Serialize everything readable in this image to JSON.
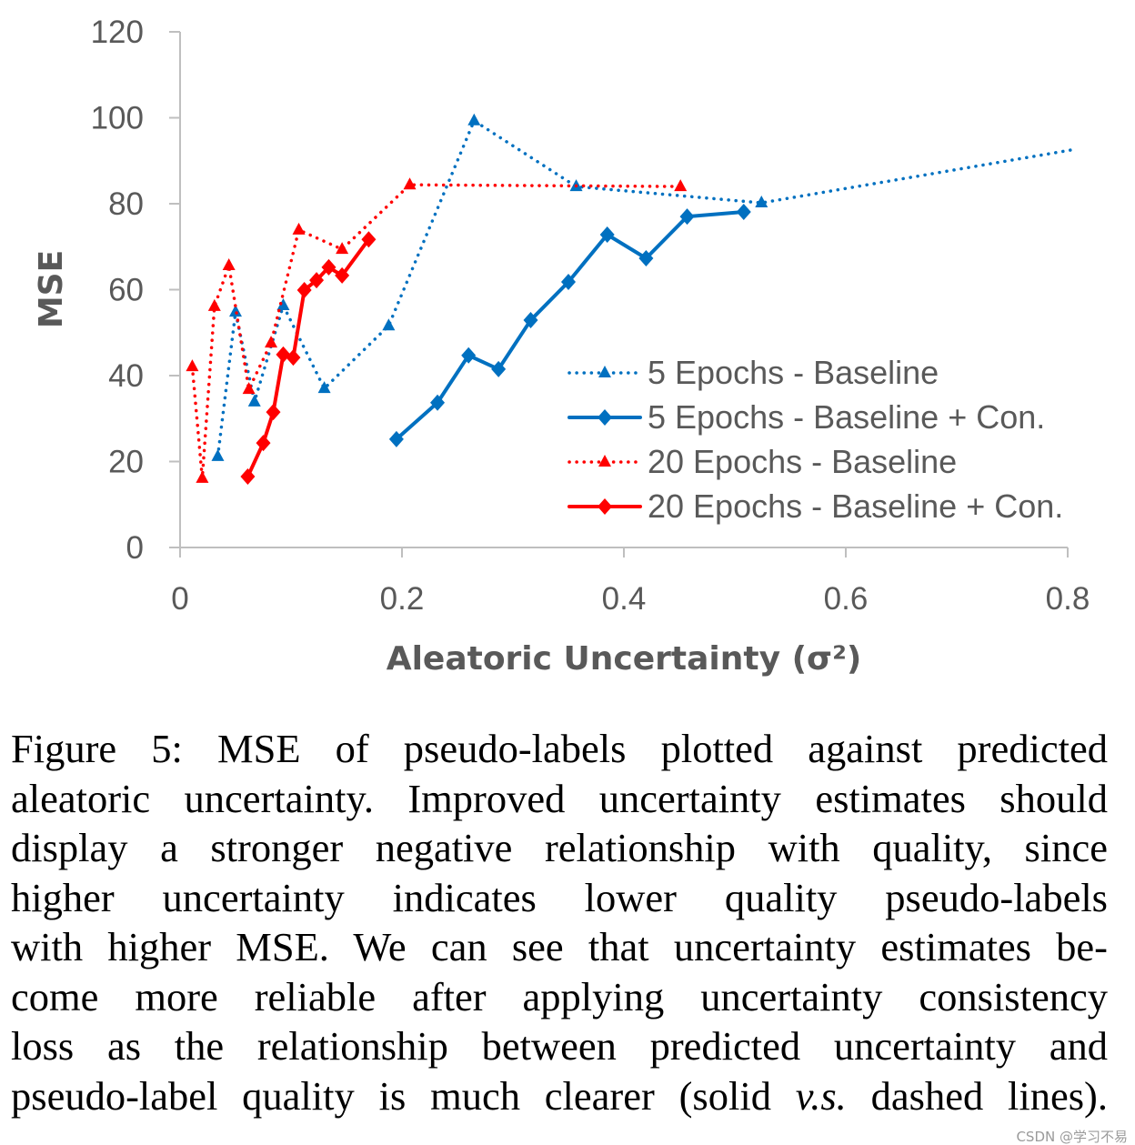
{
  "chart_data": {
    "type": "line",
    "title": "",
    "xlabel": "Aleatoric Uncertainty (σ²)",
    "ylabel": "MSE",
    "xlim": [
      0,
      0.8
    ],
    "ylim": [
      0,
      120
    ],
    "xticks": [
      "0",
      "0.2",
      "0.4",
      "0.6",
      "0.8"
    ],
    "yticks": [
      "0",
      "20",
      "40",
      "60",
      "80",
      "100",
      "120"
    ],
    "grid": false,
    "legend_position": "bottom-right",
    "series": [
      {
        "name": "5 Epochs - Baseline",
        "color": "#0070c0",
        "style": "dotted",
        "marker": "triangle",
        "x": [
          0.034,
          0.05,
          0.067,
          0.093,
          0.13,
          0.188,
          0.265,
          0.357,
          0.524,
          0.803
        ],
        "y": [
          21.2,
          54.8,
          33.9,
          56.3,
          37.0,
          51.6,
          99.3,
          84.0,
          80.2,
          92.5
        ]
      },
      {
        "name": "5 Epochs - Baseline + Con.",
        "color": "#0070c0",
        "style": "solid",
        "marker": "diamond",
        "x": [
          0.195,
          0.232,
          0.26,
          0.287,
          0.316,
          0.35,
          0.385,
          0.42,
          0.457,
          0.508
        ],
        "y": [
          25.2,
          33.7,
          44.7,
          41.5,
          52.9,
          61.8,
          72.8,
          67.3,
          77.0,
          78.1
        ]
      },
      {
        "name": "20 Epochs - Baseline",
        "color": "#ff0000",
        "style": "dotted",
        "marker": "triangle",
        "x": [
          0.011,
          0.02,
          0.031,
          0.044,
          0.062,
          0.082,
          0.107,
          0.146,
          0.207,
          0.451
        ],
        "y": [
          42.1,
          16.1,
          56.1,
          65.6,
          36.8,
          47.6,
          73.9,
          69.4,
          84.4,
          84.0
        ]
      },
      {
        "name": "20 Epochs - Baseline + Con.",
        "color": "#ff0000",
        "style": "solid",
        "marker": "diamond",
        "x": [
          0.061,
          0.075,
          0.084,
          0.093,
          0.102,
          0.112,
          0.123,
          0.134,
          0.146,
          0.17
        ],
        "y": [
          16.5,
          24.3,
          31.5,
          44.9,
          44.2,
          59.9,
          62.2,
          65.2,
          63.3,
          71.7
        ]
      }
    ]
  },
  "caption": {
    "lines": [
      "Figure 5: MSE of pseudo-labels plotted against predicted",
      "aleatoric uncertainty. Improved uncertainty estimates should",
      "display a stronger negative relationship with quality, since",
      "higher uncertainty indicates lower quality pseudo-labels",
      "with higher MSE. We can see that uncertainty estimates be-",
      "come more reliable after applying uncertainty consistency",
      "loss as the relationship between predicted uncertainty and"
    ],
    "last_pre": "pseudo-label quality is much clearer (solid ",
    "last_italic": "v.s.",
    "last_post": " dashed lines)."
  },
  "watermark": "CSDN @学习不易"
}
